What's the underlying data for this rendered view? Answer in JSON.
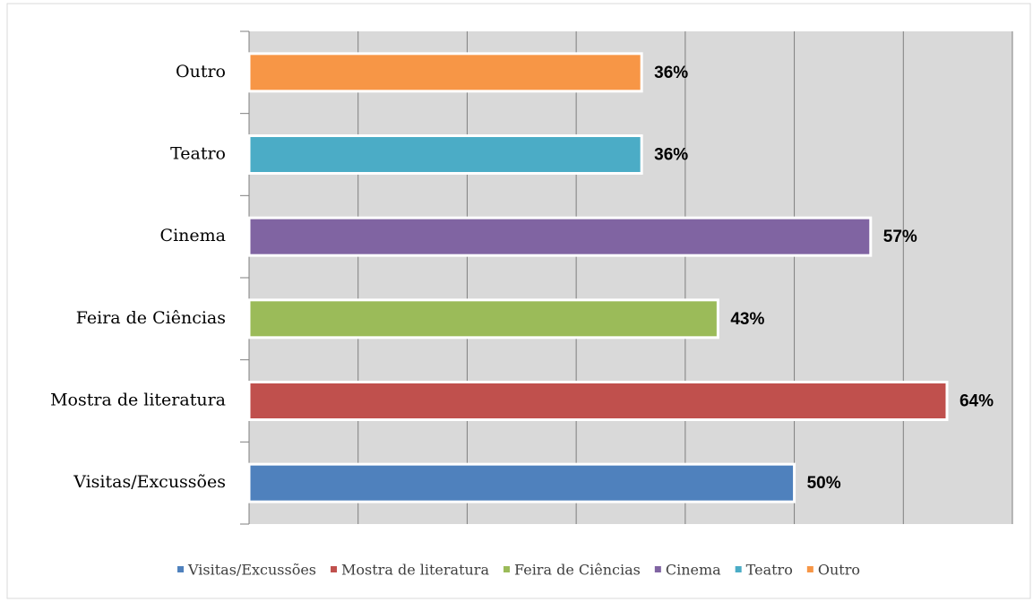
{
  "chart_data": {
    "type": "hbar",
    "categories": [
      "Visitas/Excussões",
      "Mostra de literatura",
      "Feira de Ciências",
      "Cinema",
      "Teatro",
      "Outro"
    ],
    "values": [
      50,
      64,
      43,
      57,
      36,
      36
    ],
    "value_labels": [
      "50%",
      "64%",
      "43%",
      "57%",
      "36%",
      "36%"
    ],
    "colors": [
      "#4f81bd",
      "#c0504d",
      "#9bbb59",
      "#8064a2",
      "#4bacc6",
      "#f79646"
    ],
    "xlim": [
      0,
      70
    ],
    "xticks": [
      0,
      10,
      20,
      30,
      40,
      50,
      60,
      70
    ],
    "grid": true,
    "legend": "bottom"
  }
}
